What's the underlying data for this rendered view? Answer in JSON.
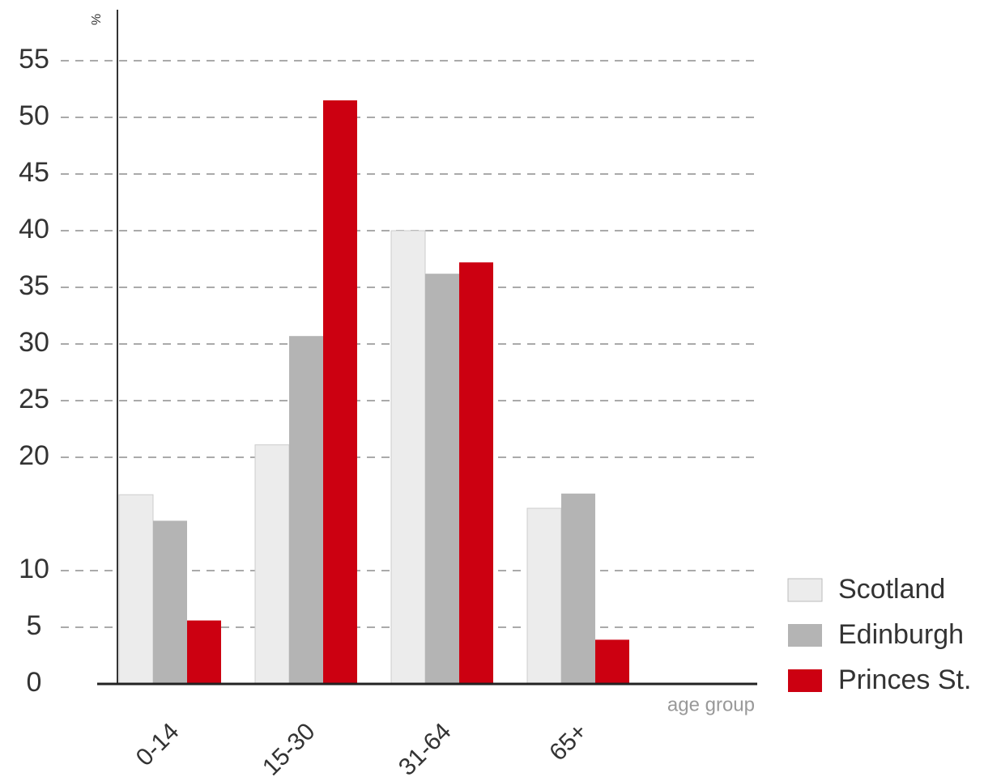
{
  "chart_data": {
    "type": "bar",
    "y_label": "%",
    "x_label": "age group",
    "categories": [
      "0-14",
      "15-30",
      "31-64",
      "65+"
    ],
    "series": [
      {
        "name": "Scotland",
        "color": "#ececec",
        "values": [
          16.7,
          21.1,
          40,
          15.5
        ]
      },
      {
        "name": "Edinburgh",
        "color": "#b4b4b4",
        "values": [
          14.4,
          30.7,
          36.2,
          16.8
        ]
      },
      {
        "name": "Princes St.",
        "color": "#cc0011",
        "values": [
          5.6,
          51.5,
          37.2,
          3.9
        ]
      }
    ],
    "ylim": [
      0,
      59
    ],
    "yticks": [
      0,
      5,
      10,
      20,
      25,
      30,
      35,
      40,
      45,
      50,
      55
    ],
    "grid": true
  }
}
